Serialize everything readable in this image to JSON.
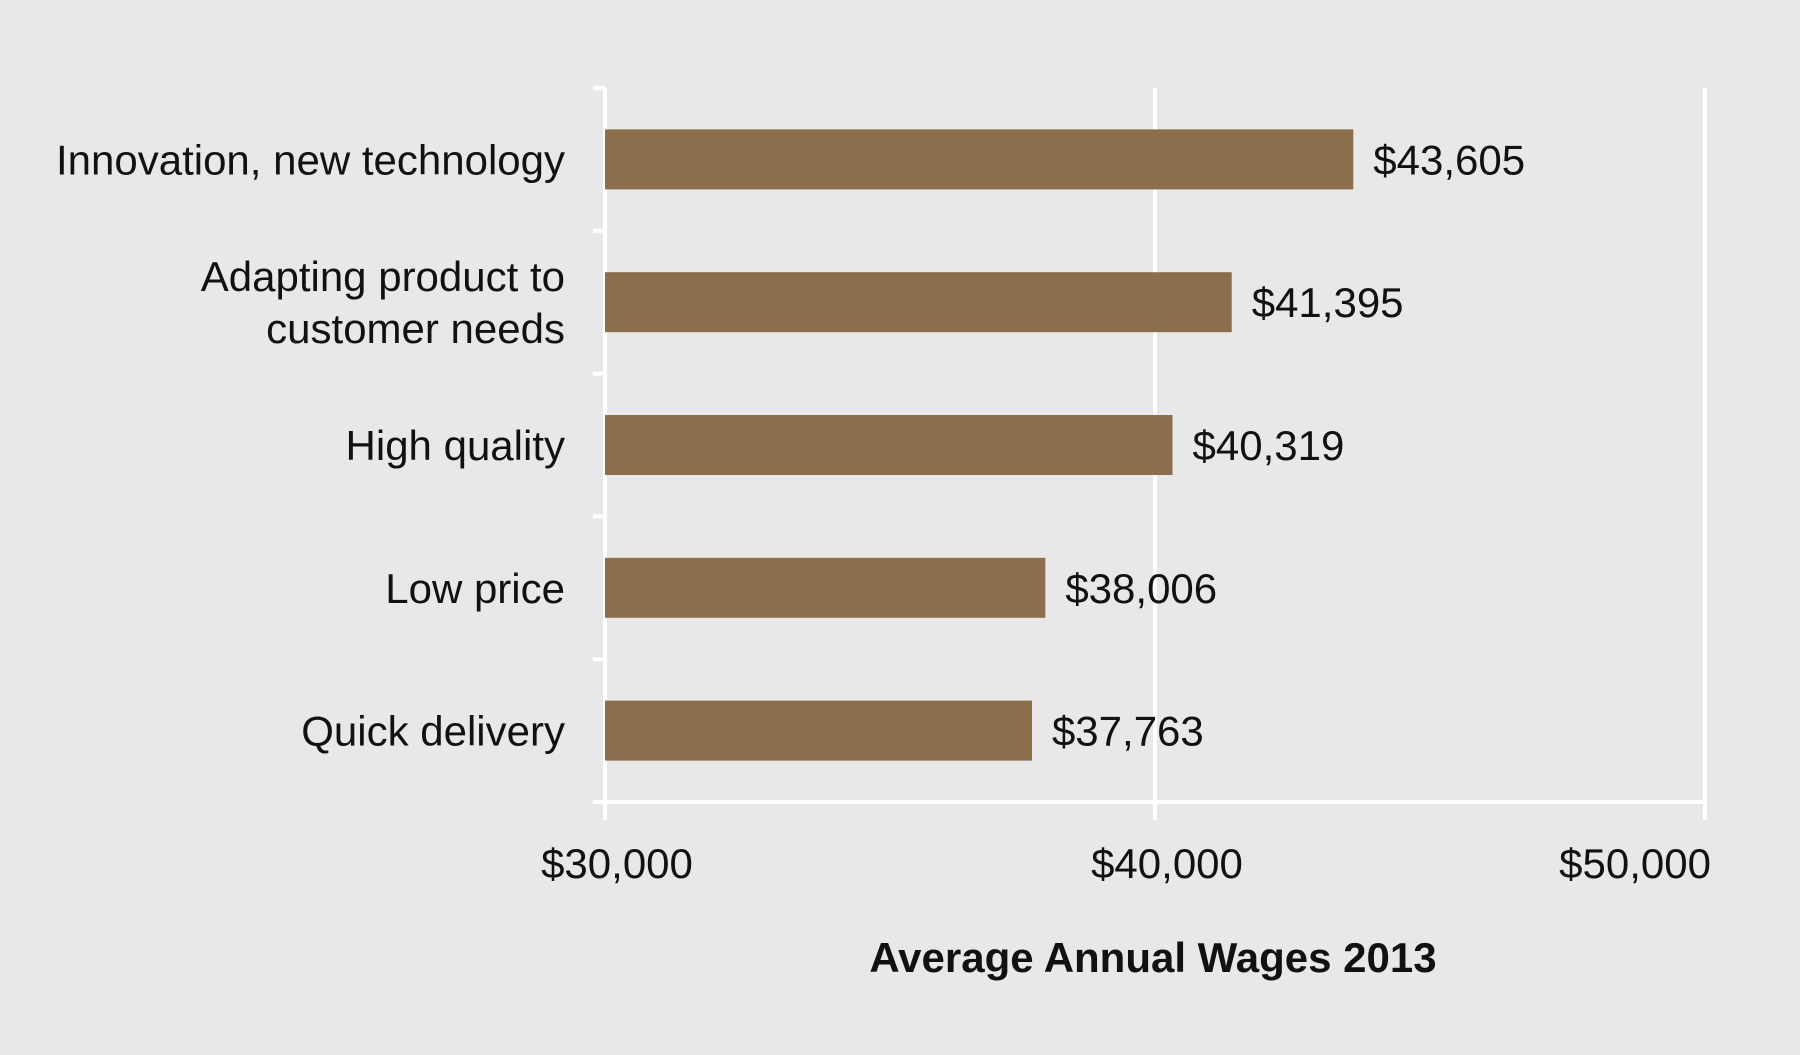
{
  "chart_data": {
    "type": "bar",
    "orientation": "horizontal",
    "categories": [
      [
        "Innovation, new technology"
      ],
      [
        "Adapting product to",
        "customer needs"
      ],
      [
        "High quality"
      ],
      [
        "Low price"
      ],
      [
        "Quick delivery"
      ]
    ],
    "values": [
      43605,
      41395,
      40319,
      38006,
      37763
    ],
    "value_labels": [
      "$43,605",
      "$41,395",
      "$40,319",
      "$38,006",
      "$37,763"
    ],
    "xlim": [
      30000,
      50000
    ],
    "x_ticks": [
      30000,
      40000,
      50000
    ],
    "x_tick_labels": [
      "$30,000",
      "$40,000",
      "$50,000"
    ],
    "xlabel": "Average Annual Wages 2013",
    "ylabel": "",
    "title": "",
    "grid": true,
    "legend": "none"
  },
  "colors": {
    "bar": "#8b6e4b",
    "background": "#e8e8e8",
    "grid": "#ffffff",
    "text": "#111111"
  }
}
